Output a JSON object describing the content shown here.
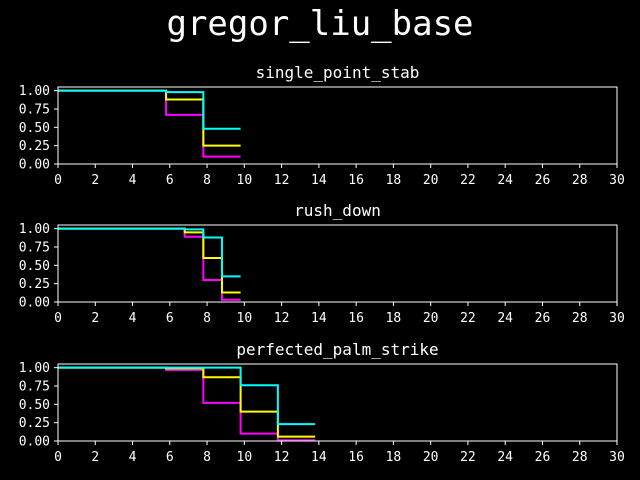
{
  "suptitle": "gregor_liu_base",
  "chart_data": [
    {
      "type": "line",
      "title": "single_point_stab",
      "xlabel": "",
      "ylabel": "",
      "xlim": [
        0,
        30
      ],
      "ylim": [
        0,
        1.05
      ],
      "xticks": [
        0,
        2,
        4,
        6,
        8,
        10,
        12,
        14,
        16,
        18,
        20,
        22,
        24,
        26,
        28,
        30
      ],
      "yticks": [
        0.0,
        0.25,
        0.5,
        0.75,
        1.0
      ],
      "xtick_labels": [
        "0",
        "2",
        "4",
        "6",
        "8",
        "10",
        "12",
        "14",
        "16",
        "18",
        "20",
        "22",
        "24",
        "26",
        "28",
        "30"
      ],
      "ytick_labels": [
        "0.00",
        "0.25",
        "0.50",
        "0.75",
        "1.00"
      ],
      "step": "post",
      "series": [
        {
          "color": "#ff00ff",
          "x": [
            0,
            5.8,
            7.8,
            9.8
          ],
          "y": [
            1.0,
            0.67,
            0.1,
            0.1
          ]
        },
        {
          "color": "#ffff00",
          "x": [
            0,
            5.8,
            7.8,
            9.8
          ],
          "y": [
            1.0,
            0.88,
            0.25,
            0.25
          ]
        },
        {
          "color": "#00ffff",
          "x": [
            0,
            5.8,
            7.8,
            9.8
          ],
          "y": [
            1.0,
            0.98,
            0.48,
            0.48
          ]
        }
      ]
    },
    {
      "type": "line",
      "title": "rush_down",
      "xlabel": "",
      "ylabel": "",
      "xlim": [
        0,
        30
      ],
      "ylim": [
        0,
        1.05
      ],
      "xticks": [
        0,
        2,
        4,
        6,
        8,
        10,
        12,
        14,
        16,
        18,
        20,
        22,
        24,
        26,
        28,
        30
      ],
      "yticks": [
        0.0,
        0.25,
        0.5,
        0.75,
        1.0
      ],
      "xtick_labels": [
        "0",
        "2",
        "4",
        "6",
        "8",
        "10",
        "12",
        "14",
        "16",
        "18",
        "20",
        "22",
        "24",
        "26",
        "28",
        "30"
      ],
      "ytick_labels": [
        "0.00",
        "0.25",
        "0.50",
        "0.75",
        "1.00"
      ],
      "step": "post",
      "series": [
        {
          "color": "#ff00ff",
          "x": [
            0,
            6.8,
            7.8,
            8.8,
            9.8
          ],
          "y": [
            1.0,
            0.89,
            0.3,
            0.03,
            0.03
          ]
        },
        {
          "color": "#ffff00",
          "x": [
            0,
            6.8,
            7.8,
            8.8,
            9.8
          ],
          "y": [
            1.0,
            0.95,
            0.6,
            0.13,
            0.13
          ]
        },
        {
          "color": "#00ffff",
          "x": [
            0,
            6.8,
            7.8,
            8.8,
            9.8
          ],
          "y": [
            1.0,
            0.99,
            0.88,
            0.35,
            0.35
          ]
        }
      ]
    },
    {
      "type": "line",
      "title": "perfected_palm_strike",
      "xlabel": "",
      "ylabel": "",
      "xlim": [
        0,
        30
      ],
      "ylim": [
        0,
        1.05
      ],
      "xticks": [
        0,
        2,
        4,
        6,
        8,
        10,
        12,
        14,
        16,
        18,
        20,
        22,
        24,
        26,
        28,
        30
      ],
      "yticks": [
        0.0,
        0.25,
        0.5,
        0.75,
        1.0
      ],
      "xtick_labels": [
        "0",
        "2",
        "4",
        "6",
        "8",
        "10",
        "12",
        "14",
        "16",
        "18",
        "20",
        "22",
        "24",
        "26",
        "28",
        "30"
      ],
      "ytick_labels": [
        "0.00",
        "0.25",
        "0.50",
        "0.75",
        "1.00"
      ],
      "step": "post",
      "series": [
        {
          "color": "#ff00ff",
          "x": [
            0,
            5.8,
            7.8,
            9.8,
            11.8,
            13.8
          ],
          "y": [
            1.0,
            0.97,
            0.52,
            0.1,
            0.01,
            0.01
          ]
        },
        {
          "color": "#ffff00",
          "x": [
            0,
            5.8,
            7.8,
            9.8,
            11.8,
            13.8
          ],
          "y": [
            1.0,
            0.99,
            0.87,
            0.4,
            0.06,
            0.06
          ]
        },
        {
          "color": "#00ffff",
          "x": [
            0,
            5.8,
            7.8,
            9.8,
            11.8,
            13.8
          ],
          "y": [
            1.0,
            1.0,
            1.0,
            0.76,
            0.23,
            0.23
          ]
        }
      ]
    }
  ]
}
